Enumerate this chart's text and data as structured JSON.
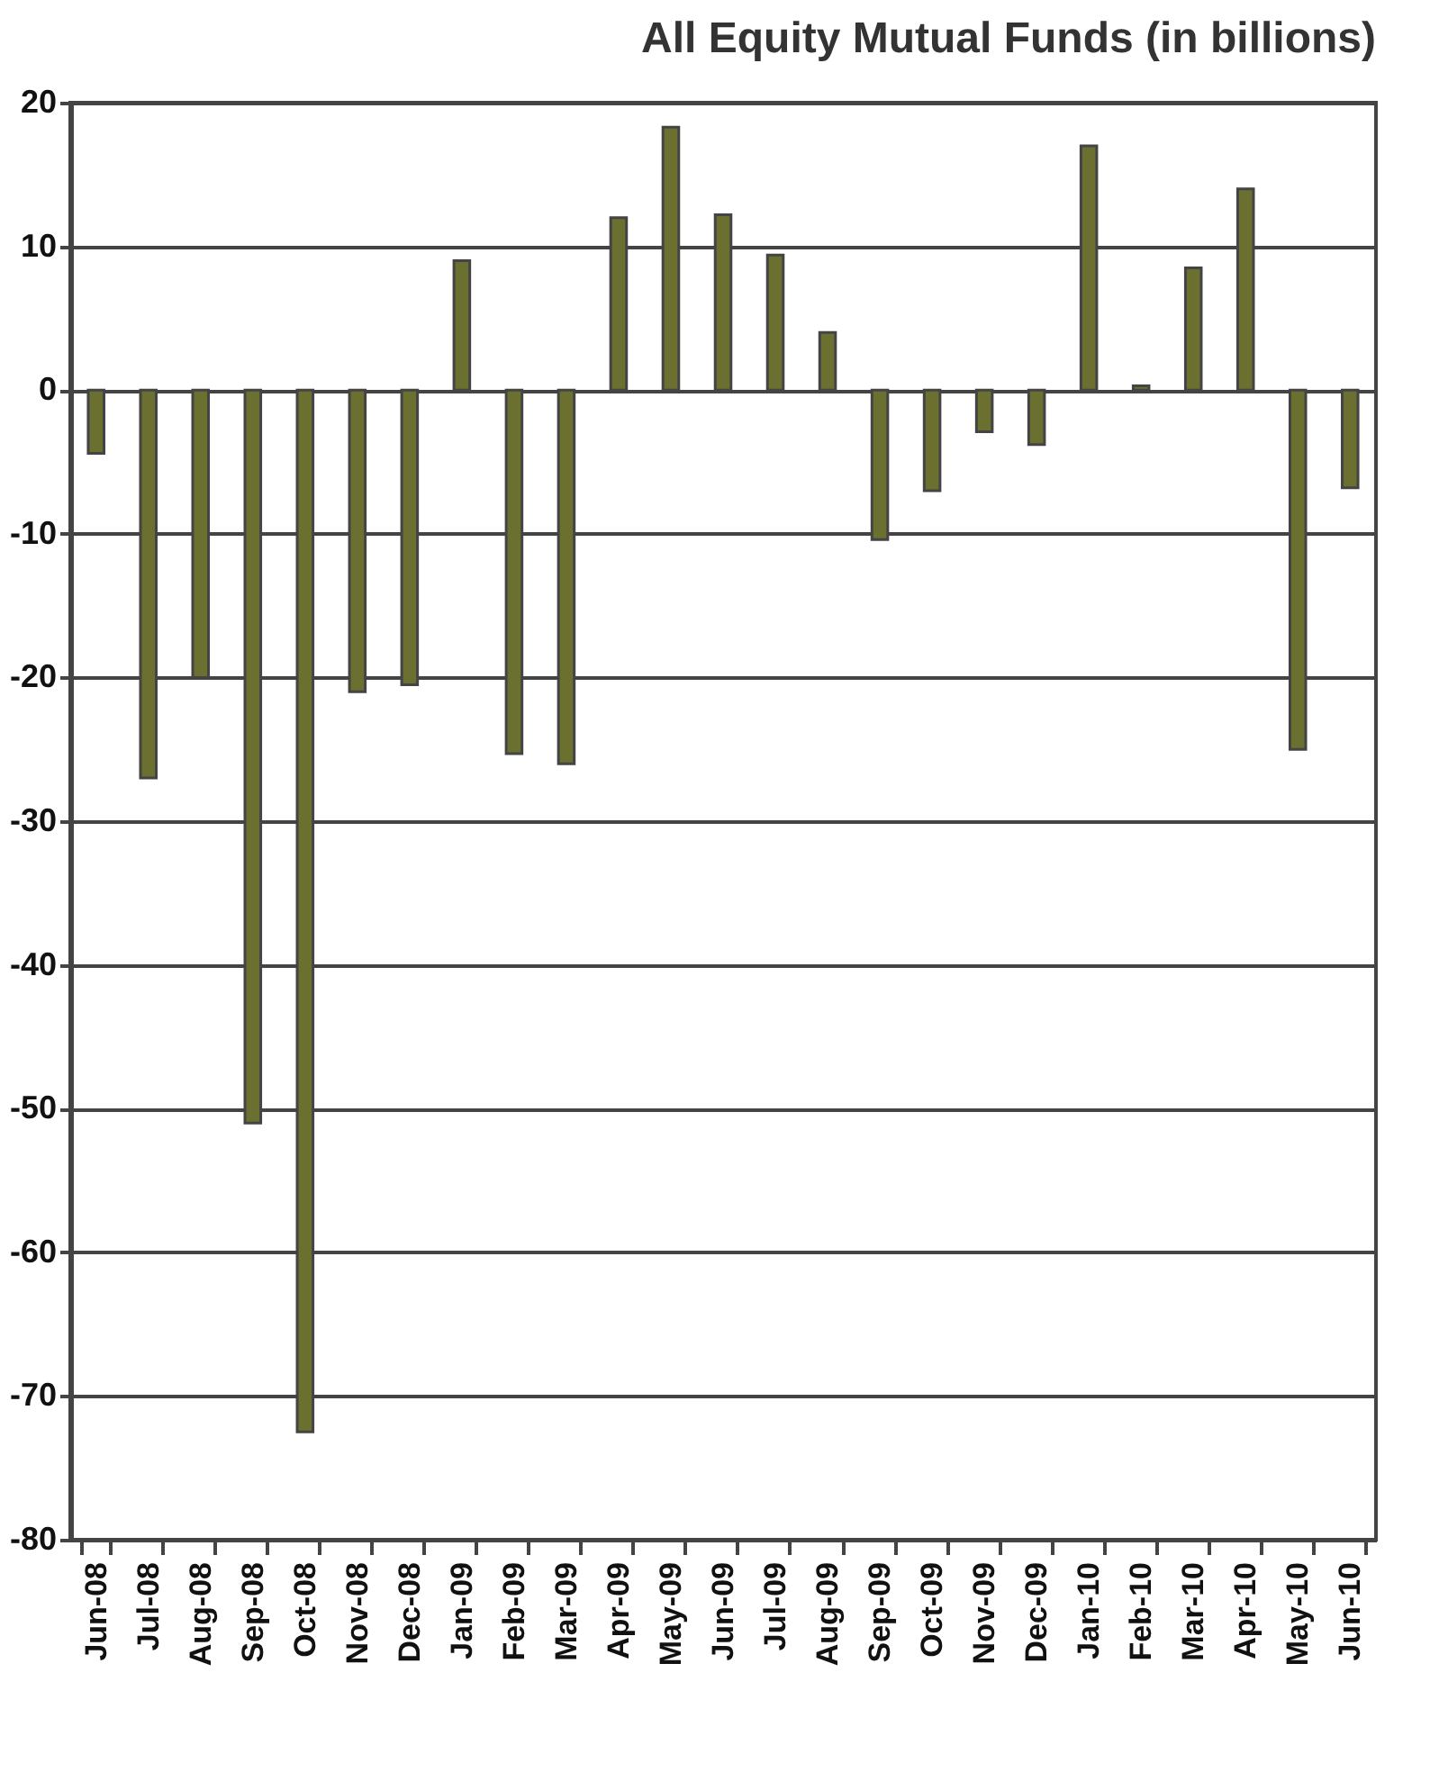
{
  "chart_data": {
    "type": "bar",
    "title": "All Equity Mutual Funds (in billions)",
    "categories": [
      "Jun-08",
      "Jul-08",
      "Aug-08",
      "Sep-08",
      "Oct-08",
      "Nov-08",
      "Dec-08",
      "Jan-09",
      "Feb-09",
      "Mar-09",
      "Apr-09",
      "May-09",
      "Jun-09",
      "Jul-09",
      "Aug-09",
      "Sep-09",
      "Oct-09",
      "Nov-09",
      "Dec-09",
      "Jan-10",
      "Feb-10",
      "Mar-10",
      "Apr-10",
      "May-10",
      "Jun-10"
    ],
    "values": [
      -4.4,
      -27,
      -20,
      -51,
      -72.5,
      -21,
      -20.5,
      9,
      -25.3,
      -26,
      12,
      18.3,
      12.2,
      9.4,
      4,
      -10.4,
      -7,
      -2.9,
      -3.8,
      17,
      0.3,
      8.5,
      14,
      -25,
      -6.8
    ],
    "color": "#6b7030",
    "ylim": [
      -80,
      20
    ],
    "yticks": [
      -80,
      -70,
      -60,
      -50,
      -40,
      -30,
      -20,
      -10,
      0,
      10,
      20
    ],
    "grid": "y"
  }
}
